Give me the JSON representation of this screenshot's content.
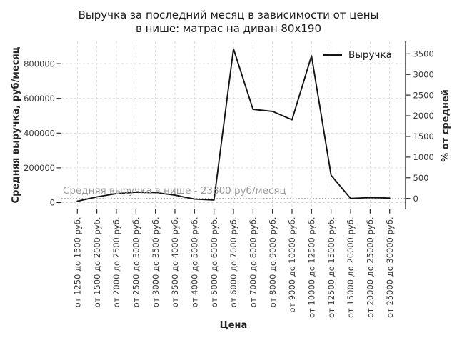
{
  "title": {
    "line1": "Выручка за последний месяц в зависимости от цены",
    "line2": "в нише: матрас на диван 80x190"
  },
  "legend": {
    "label": "Выручка",
    "position": "upper right"
  },
  "axes": {
    "left_label": "Средняя выручка, руб/месяц",
    "right_label": "% от средней",
    "x_label": "Цена"
  },
  "chart_data": {
    "type": "line",
    "title": "Выручка за последний месяц в зависимости от цены в нише: матрас на диван 80x190",
    "xlabel": "Цена",
    "ylabel_left": "Средняя выручка, руб/месяц",
    "ylabel_right": "% от средней",
    "grid": true,
    "legend_position": "upper right",
    "categories": [
      "от 1250 до 1500 руб.",
      "от 1500 до 2000 руб.",
      "от 2000 до 2500 руб.",
      "от 2500 до 3000 руб.",
      "от 3000 до 3500 руб.",
      "от 3500 до 4000 руб.",
      "от 4000 до 5000 руб.",
      "от 5000 до 6000 руб.",
      "от 6000 до 7000 руб.",
      "от 7000 до 8000 руб.",
      "от 8000 до 9000 руб.",
      "от 9000 до 10000 руб.",
      "от 10000 до 12500 руб.",
      "от 12500 до 15000 руб.",
      "от 15000 до 20000 руб.",
      "от 20000 до 25000 руб.",
      "от 25000 до 30000 руб."
    ],
    "series": [
      {
        "name": "Выручка",
        "values": [
          8000,
          33000,
          52000,
          60000,
          58000,
          43000,
          20000,
          15000,
          885000,
          537000,
          525000,
          477000,
          845000,
          157000,
          24000,
          29000,
          26000
        ]
      }
    ],
    "left_ticks": [
      0,
      200000,
      400000,
      600000,
      800000
    ],
    "left_ylim": [
      0,
      930000
    ],
    "right_ticks": [
      0,
      500,
      1000,
      1500,
      2000,
      2500,
      3000,
      3500
    ],
    "right_axis_mode": "percent_deviation_from_average",
    "average_line": {
      "value": 23800,
      "label": "Средняя выручка в нише - 23800 руб/месяц"
    },
    "colors": {
      "line": "#141414",
      "grid": "#d6d6d6",
      "average_line": "#9a9a9a",
      "annotation": "#9a9a9a",
      "tick_label": "#3a3a3a",
      "spine": "#1a1a1a"
    }
  }
}
